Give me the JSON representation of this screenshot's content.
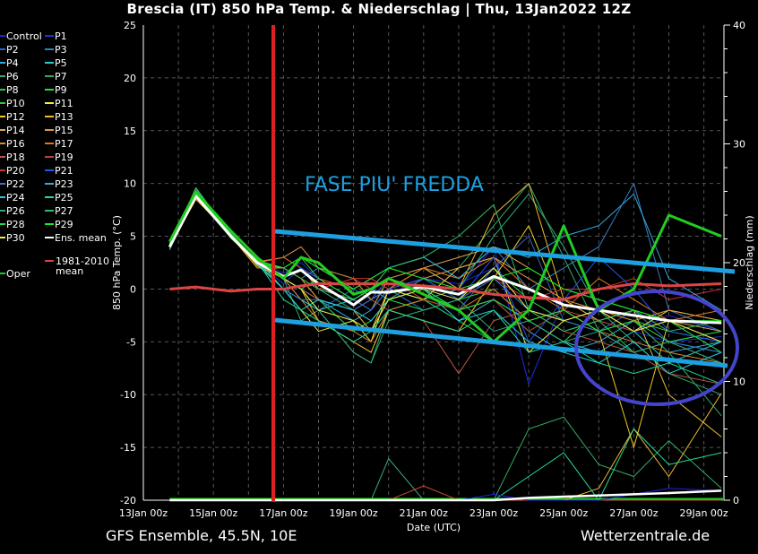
{
  "title": "Brescia  (IT)  850 hPa Temp. & Niederschlag | Thu, 13Jan2022 12Z",
  "footer": {
    "left": "GFS Ensemble, 45.5N, 10E",
    "right": "Wetterzentrale.de"
  },
  "annotations": {
    "text": "FASE PIU' FREDDA",
    "text_color": "#1ea0e0",
    "trend_color": "#1ea0e0",
    "marker_color": "#e02020",
    "ellipse_color": "#4444cc"
  },
  "chart_data": {
    "type": "line",
    "title": "Brescia  (IT)  850 hPa Temp. & Niederschlag | Thu, 13Jan2022 12Z",
    "xlabel": "Date (UTC)",
    "ylabel": "850 hPa Temp. (°C)",
    "y2label": "Niederschlag (mm)",
    "xlim_days_from_13Jan00z": [
      0,
      16.57
    ],
    "ylim": [
      -20,
      25
    ],
    "y2lim": [
      0,
      40
    ],
    "x_ticks": [
      "13Jan 00z",
      "15Jan 00z",
      "17Jan 00z",
      "19Jan 00z",
      "21Jan 00z",
      "23Jan 00z",
      "25Jan 00z",
      "27Jan 00z",
      "29Jan 00z"
    ],
    "y_ticks": [
      25,
      20,
      15,
      10,
      5,
      0,
      -5,
      -10,
      -15,
      -20
    ],
    "y2_ticks": [
      40,
      30,
      20,
      10,
      0
    ],
    "grid": true,
    "legend_placement": "left-outside",
    "x": [
      0.75,
      1.5,
      2.5,
      3.25,
      4,
      4.5,
      5,
      6,
      6.5,
      7,
      8,
      9,
      10,
      11,
      12,
      13,
      14,
      15,
      16.5
    ],
    "series": [
      {
        "name": "Control",
        "color": "#2222dd",
        "width": 1,
        "values": [
          4,
          9,
          5,
          2.8,
          1.5,
          2.5,
          1,
          -1,
          0,
          -0.5,
          1,
          0.5,
          2,
          -1,
          -3,
          -2,
          -4,
          -2.5,
          -4
        ]
      },
      {
        "name": "P1",
        "color": "#1b2fe0",
        "width": 1,
        "values": [
          4.2,
          8.6,
          5.2,
          2.5,
          0.5,
          2,
          0,
          -2,
          -1,
          0,
          2,
          0,
          4,
          -9,
          -1,
          -3,
          -4,
          -5,
          -4.5
        ]
      },
      {
        "name": "P2",
        "color": "#3366cc",
        "width": 1,
        "values": [
          3.8,
          8.8,
          5,
          2.4,
          1,
          -1,
          -2,
          0,
          -1,
          1,
          0,
          -2,
          2,
          5,
          -3,
          -4,
          -2,
          -5,
          -6
        ]
      },
      {
        "name": "P3",
        "color": "#3a7ec0",
        "width": 1,
        "values": [
          4,
          9,
          5.1,
          2.6,
          2,
          1,
          2,
          0,
          1,
          2,
          3,
          1,
          4,
          0,
          2,
          4,
          10,
          -2,
          -4
        ]
      },
      {
        "name": "P4",
        "color": "#33aadd",
        "width": 1,
        "values": [
          4.1,
          8.9,
          4.9,
          2.7,
          1,
          0,
          -1,
          -3,
          -2,
          0,
          -1,
          -3,
          -1,
          -4,
          -6,
          -5,
          -3,
          -6,
          -5
        ]
      },
      {
        "name": "P5",
        "color": "#22cccc",
        "width": 1,
        "values": [
          4,
          9.2,
          5,
          2.3,
          0,
          -1,
          -2,
          -1,
          0,
          -1,
          0,
          -2,
          -1,
          -3,
          -5,
          -6,
          -4,
          -7,
          -5
        ]
      },
      {
        "name": "P6",
        "color": "#33aa77",
        "width": 1,
        "values": [
          3.9,
          9,
          5.3,
          2.5,
          1,
          -3,
          -2,
          -6,
          -7,
          -2,
          -1,
          0,
          5,
          9,
          4,
          -2,
          -5,
          -8,
          -10
        ]
      },
      {
        "name": "P7",
        "color": "#33aa66",
        "width": 1,
        "values": [
          4.3,
          9.5,
          5,
          2.4,
          2,
          1,
          0,
          -2,
          -3,
          -1,
          1,
          2,
          6,
          10,
          3,
          -4,
          -3,
          -6,
          -12
        ]
      },
      {
        "name": "P8",
        "color": "#22cc55",
        "width": 1,
        "values": [
          4,
          8.7,
          5.2,
          2.6,
          1,
          2,
          0,
          -1,
          -2,
          0,
          -1,
          -3,
          -5,
          -2,
          -4,
          -3,
          -6,
          -5,
          -4
        ]
      },
      {
        "name": "P9",
        "color": "#22dd44",
        "width": 1,
        "values": [
          4.5,
          9.3,
          5,
          2.8,
          0,
          -2,
          -1,
          -4,
          -3,
          -1,
          -2,
          -1,
          0,
          -3,
          -5,
          -2,
          -4,
          -3,
          -6
        ]
      },
      {
        "name": "P10",
        "color": "#33cc33",
        "width": 1,
        "values": [
          4.1,
          9,
          4.8,
          2.5,
          1,
          3,
          1,
          -1,
          0,
          2,
          1,
          -1,
          2,
          -1,
          -3,
          -4,
          -3,
          -4,
          -5
        ]
      },
      {
        "name": "P11",
        "color": "#eeee44",
        "width": 1,
        "values": [
          4,
          8.8,
          5,
          2.4,
          0,
          -2,
          -4,
          -3,
          -5,
          0,
          -1,
          2,
          3,
          -6,
          -3,
          -2,
          -4,
          -2,
          -3
        ]
      },
      {
        "name": "P12",
        "color": "#eecc22",
        "width": 1,
        "values": [
          4,
          8.5,
          5.1,
          2.2,
          1,
          0,
          -3,
          -5,
          -6,
          -2,
          -3,
          -4,
          1,
          6,
          -2,
          -4,
          -15,
          -3,
          -5
        ]
      },
      {
        "name": "P13",
        "color": "#eebb33",
        "width": 1,
        "values": [
          4,
          8.8,
          5,
          2,
          2,
          1,
          -1,
          -2,
          -4,
          0,
          2,
          0,
          7,
          10,
          -1,
          -3,
          -2,
          -10,
          -14
        ]
      },
      {
        "name": "P14",
        "color": "#ddaa55",
        "width": 1,
        "values": [
          3.9,
          9,
          5,
          2.4,
          1,
          2,
          0,
          -1,
          -2,
          1,
          2,
          3,
          4,
          2,
          0,
          -1,
          -2,
          -3,
          -4
        ]
      },
      {
        "name": "P15",
        "color": "#dd9944",
        "width": 1,
        "values": [
          4,
          8.9,
          5.2,
          2.5,
          3,
          4,
          2,
          1,
          -1,
          0,
          1,
          2,
          3,
          1,
          -1,
          -2,
          -3,
          -2,
          -3
        ]
      },
      {
        "name": "P16",
        "color": "#dd8833",
        "width": 1,
        "values": [
          4,
          9,
          4.9,
          2.6,
          1,
          -1,
          -3,
          -4,
          -5,
          -2,
          -1,
          -2,
          0,
          -3,
          -2,
          -4,
          -5,
          -6,
          -7
        ]
      },
      {
        "name": "P17",
        "color": "#dd7722",
        "width": 1,
        "values": [
          4.2,
          9.1,
          5,
          2.6,
          3,
          2,
          1,
          0,
          1,
          0,
          2,
          1,
          3,
          0,
          -2,
          1,
          -1,
          -3,
          -2
        ]
      },
      {
        "name": "P18",
        "color": "#bb5544",
        "width": 1,
        "values": [
          3.8,
          8.7,
          5,
          2.5,
          1,
          0,
          -1,
          -2,
          -1,
          -2,
          -3,
          -8,
          -3,
          -2,
          -4,
          -5,
          -6,
          -8,
          -9
        ]
      },
      {
        "name": "P19",
        "color": "#bb4433",
        "width": 1,
        "values": [
          4,
          9,
          5.1,
          2.6,
          2,
          1,
          0,
          1,
          0,
          1,
          -1,
          -2,
          -1,
          -4,
          -2,
          -3,
          -4,
          -3,
          -5
        ]
      },
      {
        "name": "P20",
        "color": "#cc3333",
        "width": 1,
        "values": [
          4,
          8.9,
          5,
          2.7,
          2,
          1,
          0,
          1,
          1,
          0,
          1,
          0,
          1,
          -1,
          0,
          0,
          1,
          -1,
          0
        ]
      },
      {
        "name": "P21",
        "color": "#2255ee",
        "width": 1,
        "values": [
          4,
          9,
          5,
          2.6,
          1,
          2,
          1,
          -1,
          -2,
          0,
          1,
          -1,
          3,
          -5,
          -1,
          3,
          0,
          -4,
          -5
        ]
      },
      {
        "name": "P22",
        "color": "#3377cc",
        "width": 1,
        "values": [
          4.1,
          8.8,
          5,
          2.4,
          0,
          -1,
          -1,
          -2,
          -1,
          0,
          -2,
          -1,
          1,
          -2,
          -3,
          -4,
          -6,
          -5,
          -6
        ]
      },
      {
        "name": "P23",
        "color": "#33aadd",
        "width": 1,
        "values": [
          3.9,
          9.1,
          5.1,
          2.5,
          2,
          3,
          2,
          0,
          1,
          2,
          3,
          1,
          4,
          3,
          5,
          6,
          9,
          1,
          -2
        ]
      },
      {
        "name": "P24",
        "color": "#22ccdd",
        "width": 1,
        "values": [
          4,
          9,
          5,
          2.5,
          0,
          -2,
          -1,
          -2,
          -3,
          -1,
          0,
          -3,
          -2,
          -5,
          -6,
          -7,
          -5,
          -8,
          -6
        ]
      },
      {
        "name": "P25",
        "color": "#22dd99",
        "width": 1,
        "values": [
          4.2,
          9.2,
          5.2,
          2.6,
          -1,
          -2,
          -3,
          -5,
          -4,
          -2,
          -3,
          -4,
          -2,
          -6,
          -5,
          -7,
          -8,
          -7,
          -9
        ]
      },
      {
        "name": "P26",
        "color": "#33aa77",
        "width": 1,
        "values": [
          3.7,
          9,
          5,
          2.4,
          1,
          0,
          -2,
          -6,
          -7,
          -3,
          -2,
          -1,
          -4,
          -3,
          -5,
          -4,
          -6,
          -5,
          -7
        ]
      },
      {
        "name": "P27",
        "color": "#33bb66",
        "width": 1,
        "values": [
          4,
          9.6,
          5.1,
          2.5,
          2,
          1,
          0,
          -1,
          0,
          2,
          3,
          5,
          8,
          -2,
          -4,
          -3,
          -2,
          -4,
          -3
        ]
      },
      {
        "name": "P28",
        "color": "#22dd44",
        "width": 1,
        "values": [
          4,
          9,
          5,
          2.6,
          1,
          0,
          1,
          -1,
          0,
          1,
          0,
          -2,
          -1,
          -3,
          -2,
          -4,
          -3,
          -5,
          -4
        ]
      },
      {
        "name": "P29",
        "color": "#11ee22",
        "width": 1,
        "values": [
          4.4,
          9,
          5.2,
          2.7,
          2,
          3,
          2,
          0,
          1,
          2,
          1,
          0,
          1,
          2,
          0,
          -1,
          -2,
          -3,
          -3
        ]
      },
      {
        "name": "P30",
        "color": "#eeee55",
        "width": 1,
        "values": [
          4,
          8.8,
          5,
          2.5,
          1,
          0,
          -2,
          -3,
          -4,
          -1,
          0,
          -1,
          2,
          -2,
          -3,
          -2,
          -4,
          -3,
          -5
        ]
      },
      {
        "name": "Ens. mean",
        "color": "#ffffff",
        "width": 3,
        "values": [
          4,
          8.8,
          5,
          2.5,
          1.2,
          1.8,
          0.5,
          -1.5,
          -0.3,
          -0.3,
          0.2,
          -0.5,
          1.2,
          0,
          -1.5,
          -2,
          -2.5,
          -3,
          -3.2
        ]
      },
      {
        "name": "1981-2010 mean",
        "color": "#dd4444",
        "width": 3,
        "values": [
          0,
          0.2,
          -0.2,
          0,
          0,
          0.3,
          0.5,
          0.5,
          0.5,
          0.5,
          0.3,
          0,
          -0.5,
          -0.8,
          -1,
          0,
          0.5,
          0.3,
          0.5
        ]
      },
      {
        "name": "Oper",
        "color": "#22cc22",
        "width": 3,
        "values": [
          4.5,
          9.2,
          5.5,
          3,
          1,
          3,
          2.5,
          -0.5,
          0,
          1,
          -0.5,
          -2,
          -5,
          -2,
          6,
          -2,
          0,
          7,
          5
        ]
      }
    ],
    "precip_series": [
      {
        "name": "P6",
        "color": "#33aa77",
        "values": [
          0,
          0,
          0,
          0,
          0,
          0,
          0,
          0,
          0,
          3.5,
          0,
          0,
          0,
          0,
          0,
          0,
          0,
          0,
          0
        ]
      },
      {
        "name": "P7",
        "color": "#33aa66",
        "values": [
          0,
          0,
          0,
          0,
          0,
          0,
          0,
          0,
          0,
          0,
          0,
          0,
          0,
          6,
          7,
          3,
          2,
          5,
          1
        ]
      },
      {
        "name": "P13",
        "color": "#eebb33",
        "values": [
          0,
          0,
          0,
          0,
          0,
          0,
          0,
          0,
          0,
          0,
          0,
          0,
          0,
          0,
          0,
          1,
          6,
          2,
          9
        ]
      },
      {
        "name": "P25",
        "color": "#22dd99",
        "values": [
          0,
          0,
          0,
          0,
          0,
          0,
          0,
          0,
          0,
          0,
          0,
          0,
          0,
          2,
          4,
          0,
          6,
          3,
          4
        ]
      },
      {
        "name": "P19",
        "color": "#bb4433",
        "values": [
          0,
          0,
          0,
          0,
          0,
          0,
          0,
          0,
          0,
          0,
          1.2,
          0,
          0,
          0,
          0,
          0,
          0,
          0,
          0
        ]
      },
      {
        "name": "Control",
        "color": "#2222dd",
        "values": [
          0,
          0,
          0,
          0,
          0,
          0,
          0,
          0,
          0,
          0,
          0,
          0,
          0.5,
          0,
          0,
          0,
          0.5,
          1,
          0.8
        ]
      },
      {
        "name": "Ens. mean",
        "color": "#ffffff",
        "values": [
          0,
          0,
          0,
          0,
          0,
          0,
          0,
          0,
          0,
          0,
          0,
          0,
          0,
          0.2,
          0.3,
          0.4,
          0.5,
          0.6,
          0.8
        ]
      }
    ]
  }
}
